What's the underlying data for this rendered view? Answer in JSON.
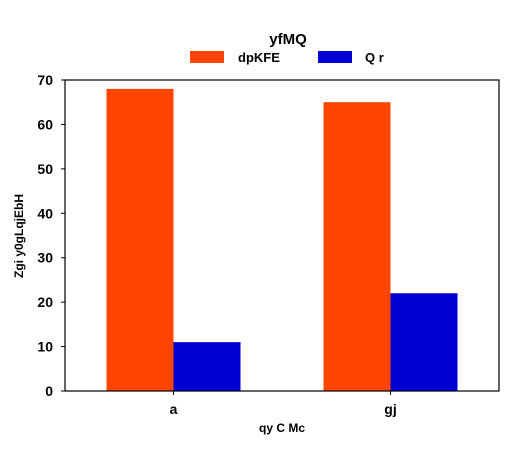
{
  "chart_data": {
    "type": "bar",
    "title": "yfMQ",
    "xlabel": "qy  C Mc",
    "ylabel": "Zgi y0gLqjEbH",
    "categories": [
      "a",
      "gj"
    ],
    "series": [
      {
        "name": "dpKFE",
        "values": [
          68,
          65
        ],
        "color": "#ff4500"
      },
      {
        "name": "Q r",
        "values": [
          11,
          22
        ],
        "color": "#0000d5"
      }
    ],
    "ylim": [
      0,
      70
    ],
    "yticks": [
      0,
      10,
      20,
      30,
      40,
      50,
      60,
      70
    ],
    "grid": false,
    "legend_position": "top-center"
  }
}
